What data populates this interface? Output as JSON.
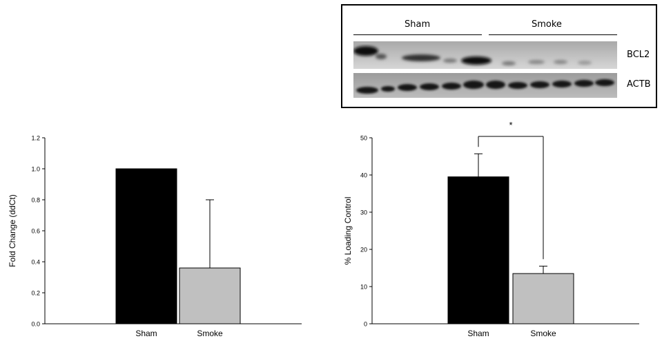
{
  "blot": {
    "groups": [
      "Sham",
      "Smoke"
    ],
    "proteins": [
      "BCL2",
      "ACTB"
    ]
  },
  "chart_data": [
    {
      "type": "bar",
      "categories": [
        "Sham",
        "Smoke"
      ],
      "values": [
        1.0,
        0.36
      ],
      "errors_upper": [
        0.0,
        0.44
      ],
      "ylabel": "Fold Change (ddCt)",
      "xlabel": "",
      "title": "",
      "ylim": [
        0.0,
        1.2
      ],
      "yticks": [
        "0.0",
        "0.2",
        "0.4",
        "0.6",
        "0.8",
        "1.0",
        "1.2"
      ],
      "colors": [
        "#000000",
        "#c0c0c0"
      ],
      "grid": false
    },
    {
      "type": "bar",
      "categories": [
        "Sham",
        "Smoke"
      ],
      "values": [
        39.5,
        13.5
      ],
      "errors_upper": [
        6.2,
        2.0
      ],
      "ylabel": "% Loading Control",
      "xlabel": "",
      "title": "",
      "ylim": [
        0,
        50
      ],
      "yticks": [
        "0",
        "10",
        "20",
        "30",
        "40",
        "50"
      ],
      "colors": [
        "#000000",
        "#c0c0c0"
      ],
      "significance": "*",
      "grid": false
    }
  ]
}
